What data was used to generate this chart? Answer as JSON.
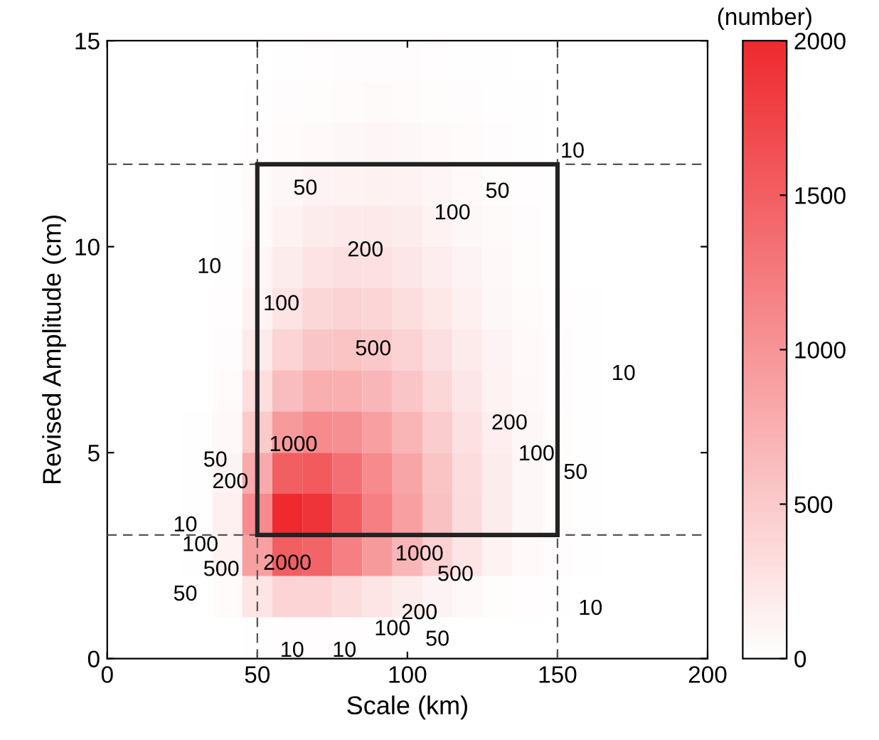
{
  "chart_data": {
    "type": "heatmap",
    "xlabel": "Scale (km)",
    "ylabel": "Revised Amplitude (cm)",
    "clabel": "(number)",
    "xlim": [
      0,
      200
    ],
    "xticks": [
      0,
      50,
      100,
      150,
      200
    ],
    "ylim": [
      0,
      15
    ],
    "yticks": [
      0,
      5,
      10,
      15
    ],
    "clim": [
      0,
      2000
    ],
    "cticks": [
      0,
      500,
      1000,
      1500,
      2000
    ],
    "color": "#ee2a2f",
    "grid": false,
    "x": [
      10,
      20,
      30,
      40,
      50,
      60,
      70,
      80,
      90,
      100,
      110,
      120,
      130,
      140,
      150,
      160,
      170,
      180,
      190
    ],
    "y": [
      14.5,
      13.5,
      12.5,
      11.5,
      10.5,
      9.5,
      8.5,
      7.5,
      6.5,
      5.5,
      4.5,
      3.5,
      2.5,
      1.5,
      0.5
    ],
    "cells": [
      [
        0,
        0,
        0,
        0,
        5,
        15,
        20,
        25,
        25,
        25,
        20,
        15,
        10,
        5,
        0,
        0,
        0,
        0,
        0
      ],
      [
        0,
        0,
        0,
        3,
        10,
        25,
        35,
        45,
        50,
        45,
        35,
        25,
        15,
        8,
        3,
        0,
        0,
        0,
        0
      ],
      [
        0,
        0,
        0,
        5,
        20,
        45,
        60,
        80,
        90,
        80,
        60,
        40,
        25,
        12,
        5,
        2,
        0,
        0,
        0
      ],
      [
        0,
        0,
        0,
        8,
        40,
        80,
        110,
        130,
        140,
        120,
        90,
        60,
        35,
        18,
        8,
        3,
        0,
        0,
        0
      ],
      [
        0,
        0,
        0,
        10,
        60,
        120,
        180,
        210,
        210,
        180,
        130,
        85,
        50,
        25,
        12,
        5,
        0,
        0,
        0
      ],
      [
        0,
        0,
        0,
        15,
        90,
        180,
        260,
        300,
        290,
        240,
        170,
        110,
        65,
        32,
        15,
        7,
        0,
        0,
        0
      ],
      [
        0,
        0,
        3,
        20,
        130,
        270,
        380,
        420,
        390,
        320,
        230,
        150,
        85,
        42,
        20,
        9,
        3,
        0,
        0
      ],
      [
        0,
        0,
        5,
        30,
        200,
        400,
        540,
        570,
        520,
        420,
        300,
        190,
        110,
        55,
        25,
        10,
        4,
        0,
        0
      ],
      [
        0,
        0,
        6,
        45,
        320,
        620,
        760,
        760,
        680,
        540,
        380,
        240,
        130,
        65,
        30,
        12,
        5,
        0,
        0
      ],
      [
        0,
        0,
        8,
        70,
        500,
        950,
        1100,
        1050,
        900,
        700,
        480,
        290,
        160,
        75,
        35,
        14,
        6,
        0,
        0
      ],
      [
        0,
        0,
        10,
        110,
        800,
        1500,
        1550,
        1350,
        1100,
        850,
        560,
        330,
        180,
        85,
        38,
        15,
        6,
        0,
        0
      ],
      [
        0,
        0,
        12,
        150,
        1100,
        2000,
        1900,
        1550,
        1200,
        900,
        580,
        340,
        180,
        85,
        38,
        15,
        6,
        0,
        0
      ],
      [
        0,
        0,
        10,
        120,
        900,
        1500,
        1450,
        1200,
        950,
        680,
        430,
        250,
        130,
        60,
        28,
        10,
        4,
        0,
        0
      ],
      [
        0,
        0,
        5,
        40,
        250,
        400,
        400,
        330,
        250,
        180,
        110,
        65,
        35,
        18,
        8,
        3,
        0,
        0,
        0
      ],
      [
        0,
        0,
        0,
        5,
        15,
        20,
        20,
        18,
        15,
        12,
        8,
        5,
        3,
        0,
        0,
        0,
        0,
        0,
        0
      ]
    ],
    "ref_lines": [
      {
        "axis": "x",
        "value": 50,
        "line_style": "dashed",
        "color": "#555555"
      },
      {
        "axis": "x",
        "value": 150,
        "line_style": "dashed",
        "color": "#555555"
      },
      {
        "axis": "y",
        "value": 3,
        "line_style": "dashed",
        "color": "#555555"
      },
      {
        "axis": "y",
        "value": 12,
        "line_style": "dashed",
        "color": "#555555"
      }
    ],
    "annotations": [
      "50",
      "100",
      "50",
      "10",
      "10",
      "200",
      "100",
      "500",
      "10",
      "200",
      "100",
      "50",
      "1000",
      "50",
      "200",
      "10",
      "100",
      "500",
      "50",
      "2000",
      "1000",
      "500",
      "10",
      "200",
      "100",
      "50",
      "10",
      "10"
    ]
  }
}
